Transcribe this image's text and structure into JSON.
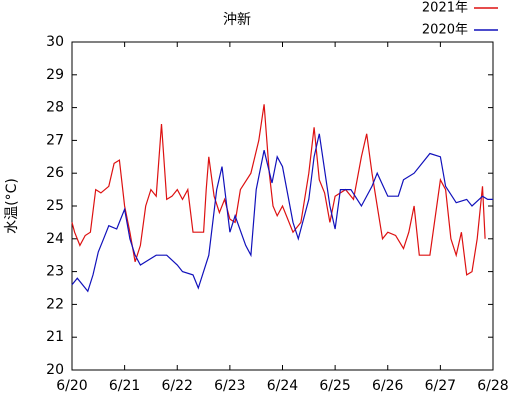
{
  "chart_data": {
    "type": "line",
    "title": "沖新",
    "ylabel": "水温(°C)",
    "xlim": [
      20,
      28
    ],
    "ylim": [
      20,
      30
    ],
    "xticks": [
      {
        "value": 20,
        "label": "6/20"
      },
      {
        "value": 21,
        "label": "6/21"
      },
      {
        "value": 22,
        "label": "6/22"
      },
      {
        "value": 23,
        "label": "6/23"
      },
      {
        "value": 24,
        "label": "6/24"
      },
      {
        "value": 25,
        "label": "6/25"
      },
      {
        "value": 26,
        "label": "6/26"
      },
      {
        "value": 27,
        "label": "6/27"
      },
      {
        "value": 28,
        "label": "6/28"
      }
    ],
    "yticks": [
      20,
      21,
      22,
      23,
      24,
      25,
      26,
      27,
      28,
      29,
      30
    ],
    "legend": "upper right",
    "series": [
      {
        "name": "2021年",
        "color": "#dd1111",
        "x": [
          20.0,
          20.05,
          20.15,
          20.25,
          20.35,
          20.45,
          20.55,
          20.7,
          20.8,
          20.9,
          21.0,
          21.1,
          21.2,
          21.3,
          21.4,
          21.5,
          21.6,
          21.7,
          21.8,
          21.9,
          22.0,
          22.1,
          22.2,
          22.3,
          22.5,
          22.55,
          22.6,
          22.7,
          22.8,
          22.9,
          23.0,
          23.1,
          23.2,
          23.4,
          23.55,
          23.65,
          23.75,
          23.82,
          23.9,
          24.0,
          24.2,
          24.35,
          24.5,
          24.6,
          24.7,
          24.8,
          24.9,
          25.0,
          25.2,
          25.35,
          25.5,
          25.6,
          25.7,
          25.75,
          25.8,
          25.9,
          26.0,
          26.15,
          26.3,
          26.4,
          26.5,
          26.6,
          26.8,
          27.0,
          27.1,
          27.2,
          27.3,
          27.4,
          27.5,
          27.6,
          27.7,
          27.8,
          27.85
        ],
        "values": [
          24.5,
          24.2,
          23.8,
          24.1,
          24.2,
          25.5,
          25.4,
          25.6,
          26.3,
          26.4,
          25.0,
          24.2,
          23.3,
          23.8,
          25.0,
          25.5,
          25.3,
          27.5,
          25.2,
          25.3,
          25.5,
          25.2,
          25.5,
          24.2,
          24.2,
          25.5,
          26.5,
          25.3,
          24.8,
          25.2,
          24.6,
          24.5,
          25.5,
          26.0,
          27.0,
          28.1,
          26.0,
          25.0,
          24.7,
          25.0,
          24.2,
          24.5,
          26.0,
          27.4,
          25.8,
          25.4,
          24.5,
          25.3,
          25.5,
          25.2,
          26.5,
          27.2,
          26.0,
          25.5,
          25.0,
          24.0,
          24.2,
          24.1,
          23.7,
          24.2,
          25.0,
          23.5,
          23.5,
          25.8,
          25.5,
          24.0,
          23.5,
          24.2,
          22.9,
          23.0,
          24.0,
          25.6,
          24.0
        ]
      },
      {
        "name": "2020年",
        "color": "#1111bb",
        "x": [
          20.0,
          20.1,
          20.3,
          20.4,
          20.5,
          20.6,
          20.7,
          20.85,
          21.0,
          21.1,
          21.2,
          21.3,
          21.5,
          21.6,
          21.8,
          22.0,
          22.1,
          22.3,
          22.4,
          22.6,
          22.75,
          22.85,
          23.0,
          23.1,
          23.3,
          23.4,
          23.5,
          23.65,
          23.8,
          23.9,
          24.0,
          24.2,
          24.3,
          24.5,
          24.6,
          24.7,
          24.9,
          25.0,
          25.1,
          25.3,
          25.5,
          25.7,
          25.8,
          26.0,
          26.2,
          26.3,
          26.5,
          26.8,
          27.0,
          27.1,
          27.3,
          27.5,
          27.6,
          27.8,
          27.9,
          28.0
        ],
        "values": [
          22.6,
          22.8,
          22.4,
          22.9,
          23.6,
          24.0,
          24.4,
          24.3,
          24.9,
          24.0,
          23.5,
          23.2,
          23.4,
          23.5,
          23.5,
          23.2,
          23.0,
          22.9,
          22.5,
          23.5,
          25.5,
          26.2,
          24.2,
          24.7,
          23.8,
          23.5,
          25.5,
          26.7,
          25.7,
          26.5,
          26.2,
          24.5,
          24.0,
          25.2,
          26.5,
          27.2,
          25.0,
          24.3,
          25.5,
          25.5,
          25.0,
          25.6,
          26.0,
          25.3,
          25.3,
          25.8,
          26.0,
          26.6,
          26.5,
          25.6,
          25.1,
          25.2,
          25.0,
          25.3,
          25.2,
          25.2
        ]
      }
    ]
  }
}
